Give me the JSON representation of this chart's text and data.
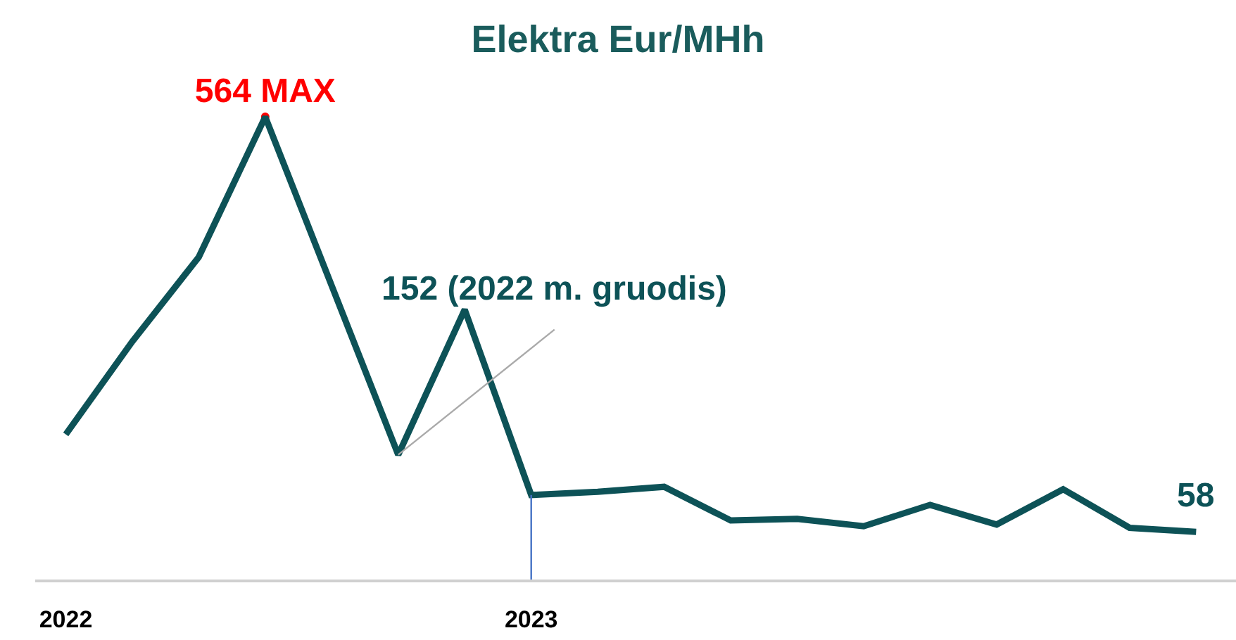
{
  "chart_data": {
    "type": "line",
    "title": "Elektra Eur/MHh",
    "marker": "none",
    "categories": [
      "2022",
      null,
      null,
      null,
      null,
      null,
      null,
      "2023",
      null,
      null,
      null,
      null,
      null,
      null,
      null,
      null,
      null,
      null
    ],
    "series": [
      {
        "color": "#ff0000",
        "marker": "circle",
        "values": [
          null,
          null,
          null,
          564,
          null,
          null,
          null,
          null,
          null,
          null,
          null,
          null,
          null,
          null,
          null,
          null,
          null,
          null
        ],
        "value_labels": [
          null,
          null,
          null,
          "564 MAX",
          null,
          null,
          null,
          null,
          null,
          null,
          null,
          null,
          null,
          null,
          null,
          null,
          null,
          null
        ]
      },
      {
        "color": "#0d5257",
        "values": [
          177,
          290,
          393,
          564,
          358,
          152,
          329,
          103,
          107,
          113,
          72,
          74,
          65,
          91,
          67,
          110,
          63,
          58
        ],
        "value_labels": [
          null,
          null,
          null,
          null,
          null,
          "152 (2022 m. gruodis)",
          null,
          null,
          null,
          null,
          null,
          null,
          null,
          null,
          null,
          null,
          null,
          "58"
        ]
      }
    ],
    "ref_lines": [
      {
        "axis": "x",
        "value": "2023",
        "color": "#4472c4"
      }
    ]
  }
}
